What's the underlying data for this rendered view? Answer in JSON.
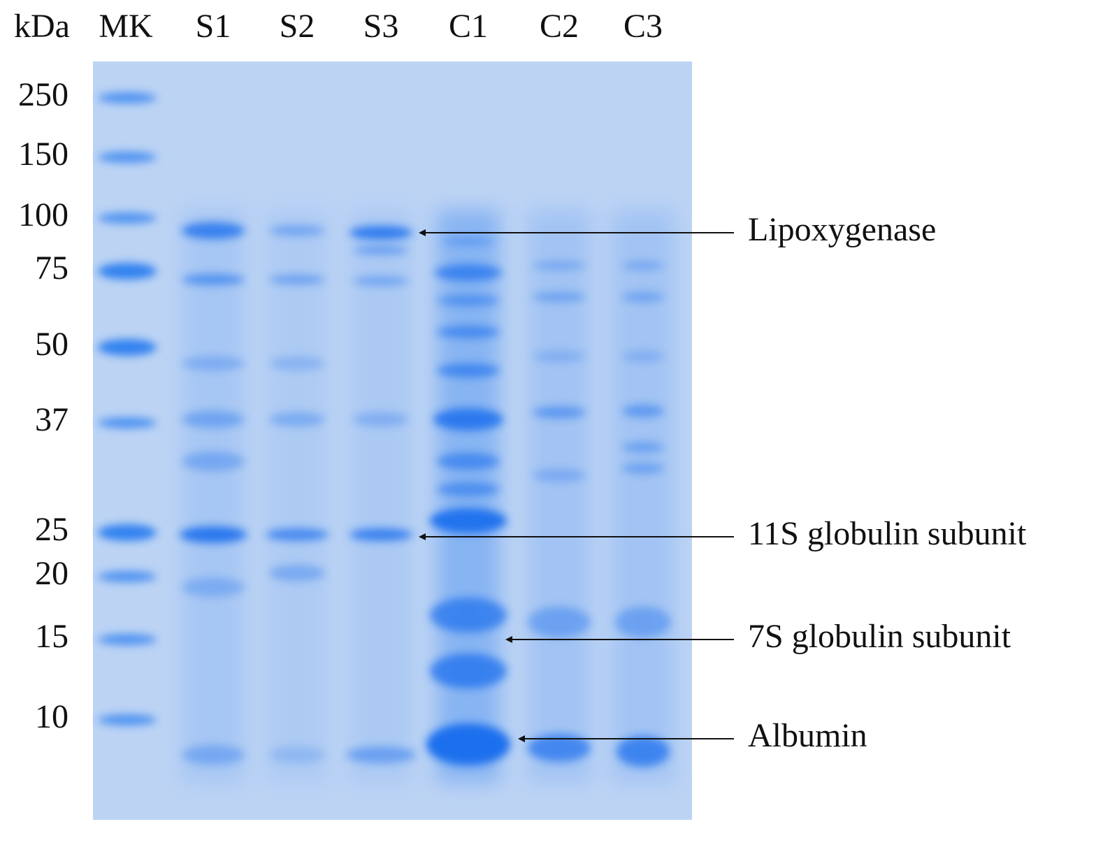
{
  "header": {
    "unit": "kDa",
    "lanes": [
      "MK",
      "S1",
      "S2",
      "S3",
      "C1",
      "C2",
      "C3"
    ]
  },
  "markers": [
    "250",
    "150",
    "100",
    "75",
    "50",
    "37",
    "25",
    "20",
    "15",
    "10"
  ],
  "annotations": [
    "Lipoxygenase",
    "11S globulin subunit",
    "7S globulin subunit",
    "Albumin"
  ]
}
